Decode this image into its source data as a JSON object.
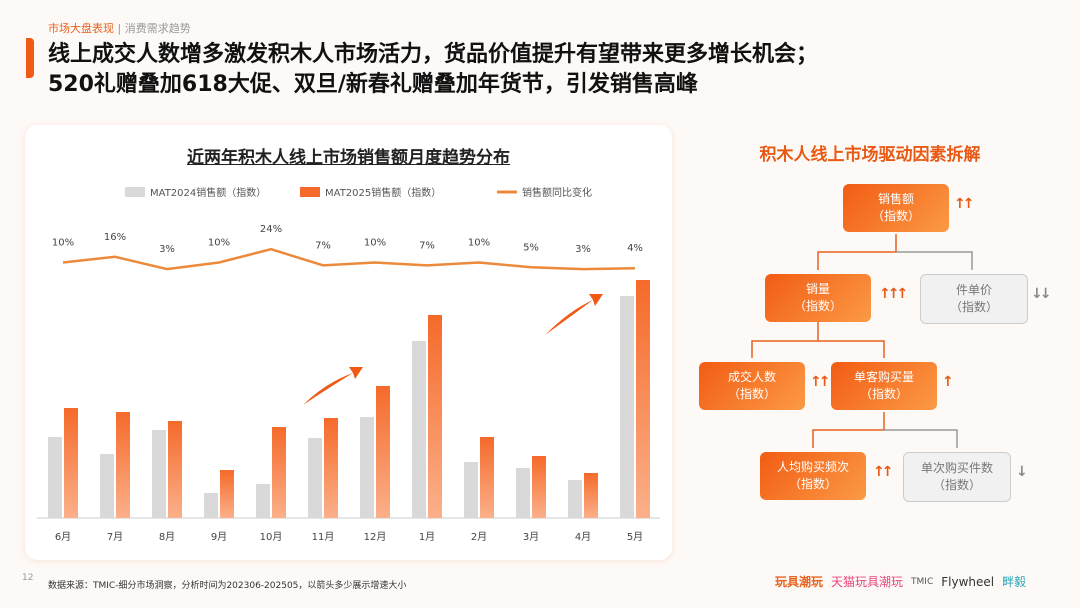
{
  "header": {
    "section": "市场大盘表现",
    "subsection": "消费需求趋势",
    "separator": "|",
    "title_line1": "线上成交人数增多激发积木人市场活力，货品价值提升有望带来更多增长机会；",
    "title_line2": "520礼赠叠加618大促、双旦/新春礼赠叠加年货节，引发销售高峰"
  },
  "chart_data": {
    "type": "bar",
    "title": "近两年积木人线上市场销售额月度趋势分布",
    "categories": [
      "6月",
      "7月",
      "8月",
      "9月",
      "10月",
      "11月",
      "12月",
      "1月",
      "2月",
      "3月",
      "4月",
      "5月"
    ],
    "series": [
      {
        "name": "MAT2024销售额（指数）",
        "values": [
          81,
          64,
          88,
          25,
          34,
          80,
          101,
          177,
          56,
          50,
          38,
          222
        ],
        "color": "#d9d9d9"
      },
      {
        "name": "MAT2025销售额（指数）",
        "values": [
          110,
          106,
          97,
          48,
          91,
          100,
          132,
          203,
          81,
          62,
          45,
          238
        ],
        "color": "#f56a2a"
      },
      {
        "name": "销售额同比变化",
        "type": "line",
        "values": [
          10,
          16,
          3,
          10,
          24,
          7,
          10,
          7,
          10,
          5,
          3,
          4
        ],
        "labels": [
          "10%",
          "16%",
          "3%",
          "10%",
          "24%",
          "7%",
          "10%",
          "7%",
          "10%",
          "5%",
          "3%",
          "4%"
        ],
        "color": "#ec8a3c"
      }
    ],
    "legend": "top",
    "grid": false
  },
  "driver": {
    "title": "积木人线上市场驱动因素拆解",
    "sub": "（指数）",
    "nodes": [
      {
        "label": "销售额",
        "arrows": "↑↑"
      },
      {
        "label": "销量",
        "arrows": "↑↑↑"
      },
      {
        "label": "件单价",
        "arrows": "↓↓"
      },
      {
        "label": "成交人数",
        "arrows": "↑↑"
      },
      {
        "label": "单客购买量",
        "arrows": "↑"
      },
      {
        "label": "人均购买频次",
        "arrows": "↑↑"
      },
      {
        "label": "单次购买件数",
        "arrows": "↓"
      }
    ]
  },
  "footer": {
    "page": "12",
    "source": "数据来源：TMIC-细分市场洞察，分析时间为202306-202505，以箭头多少展示增速大小",
    "logos": [
      "玩具潮玩",
      "天猫玩具潮玩",
      "TMIC",
      "Flywheel",
      "畔毅"
    ]
  }
}
